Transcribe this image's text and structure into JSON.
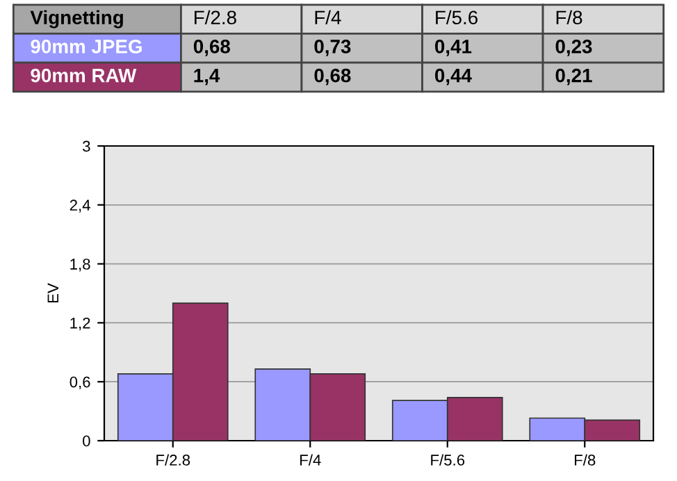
{
  "chart_data": {
    "type": "bar",
    "legend_title": "Vignetting",
    "ylabel": "EV",
    "categories": [
      "F/2.8",
      "F/4",
      "F/5.6",
      "F/8"
    ],
    "series": [
      {
        "name": "90mm JPEG",
        "color": "#9999ff",
        "values": [
          0.68,
          0.73,
          0.41,
          0.23
        ],
        "value_labels": [
          "0,68",
          "0,73",
          "0,41",
          "0,23"
        ]
      },
      {
        "name": "90mm RAW",
        "color": "#993366",
        "values": [
          1.4,
          0.68,
          0.44,
          0.21
        ],
        "value_labels": [
          "1,4",
          "0,68",
          "0,44",
          "0,21"
        ]
      }
    ],
    "ylim": [
      0,
      3
    ],
    "yticks": [
      0,
      {
        "value": 0.6,
        "label": "0,6"
      },
      {
        "value": 1.2,
        "label": "1,2"
      },
      {
        "value": 1.8,
        "label": "1,8"
      },
      {
        "value": 2.4,
        "label": "2,4"
      },
      3
    ],
    "grid": "y",
    "legend": "top"
  }
}
